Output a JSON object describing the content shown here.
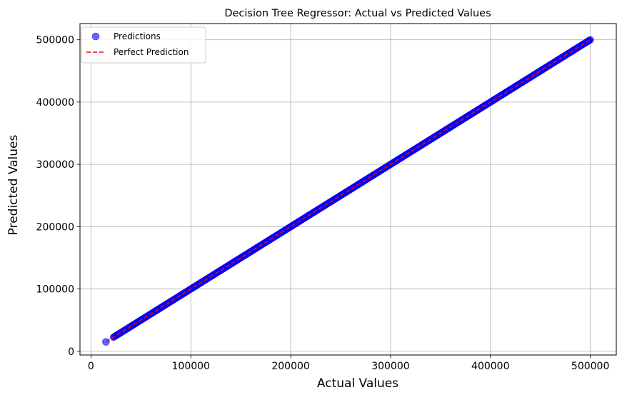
{
  "chart_data": {
    "type": "scatter",
    "title": "Decision Tree Regressor: Actual vs Predicted Values",
    "xlabel": "Actual Values",
    "ylabel": "Predicted Values",
    "xlim": [
      -11000,
      526000
    ],
    "ylim": [
      -6000,
      526000
    ],
    "xticks": [
      0,
      100000,
      200000,
      300000,
      400000,
      500000
    ],
    "yticks": [
      0,
      100000,
      200000,
      300000,
      400000,
      500000
    ],
    "xtick_labels": [
      "0",
      "100000",
      "200000",
      "300000",
      "400000",
      "500000"
    ],
    "ytick_labels": [
      "0",
      "100000",
      "200000",
      "300000",
      "400000",
      "500000"
    ],
    "grid": true,
    "legend_position": "top-left",
    "series": [
      {
        "name": "Predictions",
        "kind": "scatter",
        "color": "#0000ff",
        "alpha": 0.6,
        "x_range": [
          14999,
          500001
        ],
        "relationship": "predicted equals actual (dense continuous points)",
        "sample_points": [
          [
            14999,
            14999
          ],
          [
            22500,
            22500
          ],
          [
            100000,
            100000
          ],
          [
            200000,
            200000
          ],
          [
            300000,
            300000
          ],
          [
            400000,
            400000
          ],
          [
            500001,
            500001
          ]
        ]
      },
      {
        "name": "Perfect Prediction",
        "kind": "line",
        "style": "dashed",
        "color": "#ff0000",
        "x": [
          14999,
          500001
        ],
        "y": [
          14999,
          500001
        ]
      }
    ]
  }
}
